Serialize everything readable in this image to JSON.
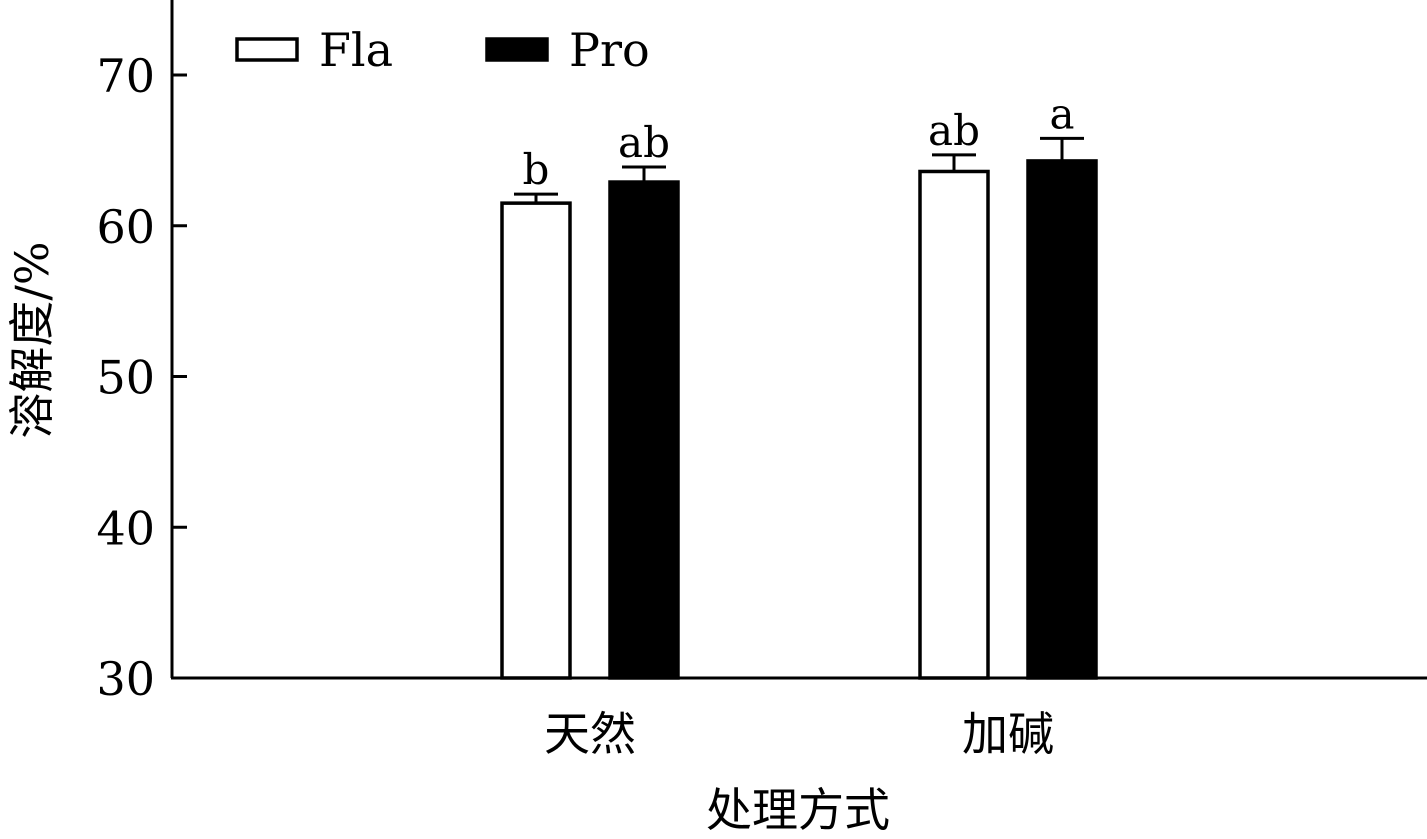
{
  "chart_data": {
    "type": "bar",
    "title": "",
    "xlabel": "处理方式",
    "ylabel": "溶解度/%",
    "ylim": [
      30,
      73
    ],
    "yticks": [
      30,
      40,
      50,
      60,
      70
    ],
    "ytick_labels": [
      "30",
      "40",
      "50",
      "60",
      "70"
    ],
    "categories": [
      "天然",
      "加碱"
    ],
    "series": [
      {
        "name": "Fla",
        "fill": "#ffffff",
        "stroke": "#000000",
        "values": [
          61.5,
          63.6
        ],
        "errors": [
          0.6,
          1.1
        ],
        "significance": [
          "b",
          "ab"
        ]
      },
      {
        "name": "Pro",
        "fill": "#000000",
        "stroke": "#000000",
        "values": [
          62.9,
          64.3
        ],
        "errors": [
          1.0,
          1.5
        ],
        "significance": [
          "ab",
          "a"
        ]
      }
    ],
    "legend_position": "top-left",
    "grid": false
  }
}
